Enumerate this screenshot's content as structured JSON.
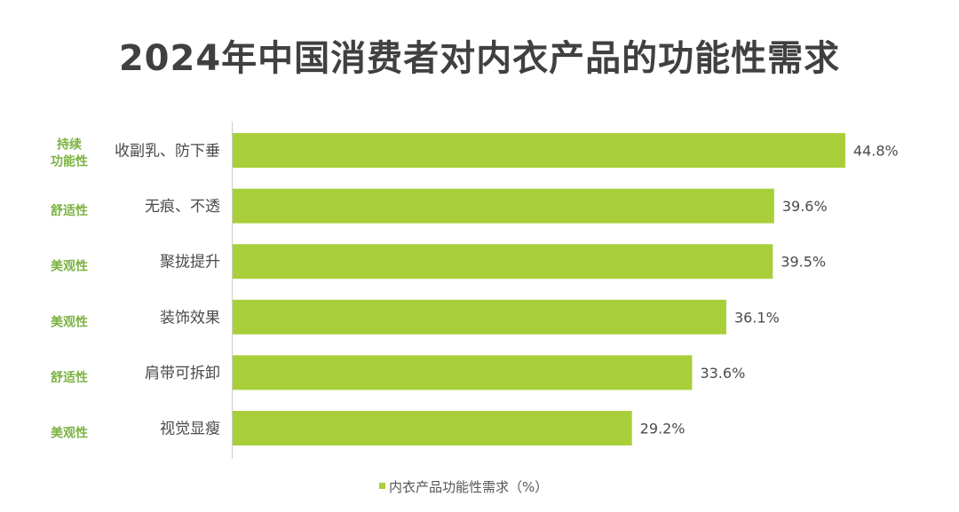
{
  "chart_data": {
    "type": "bar",
    "orientation": "horizontal",
    "title": "2024年中国消费者对内衣产品的功能性需求",
    "categories": [
      "收副乳、防下垂",
      "无痕、不透",
      "聚拢提升",
      "装饰效果",
      "肩带可拆卸",
      "视觉显瘦"
    ],
    "groups": [
      [
        "持续",
        "功能性"
      ],
      [
        "舒适性"
      ],
      [
        "美观性"
      ],
      [
        "美观性"
      ],
      [
        "舒适性"
      ],
      [
        "美观性"
      ]
    ],
    "series": [
      {
        "name": "内衣产品功能性需求（%）",
        "values": [
          44.8,
          39.6,
          39.5,
          36.1,
          33.6,
          29.2
        ],
        "value_labels": [
          "44.8%",
          "39.6%",
          "39.5%",
          "36.1%",
          "33.6%",
          "29.2%"
        ]
      }
    ],
    "xlim": [
      0,
      50
    ],
    "grid": false,
    "legend_position": "bottom"
  },
  "colors": {
    "bar": "#a8cf3a",
    "group_label": "#7cb342",
    "axis": "#cccccc"
  }
}
